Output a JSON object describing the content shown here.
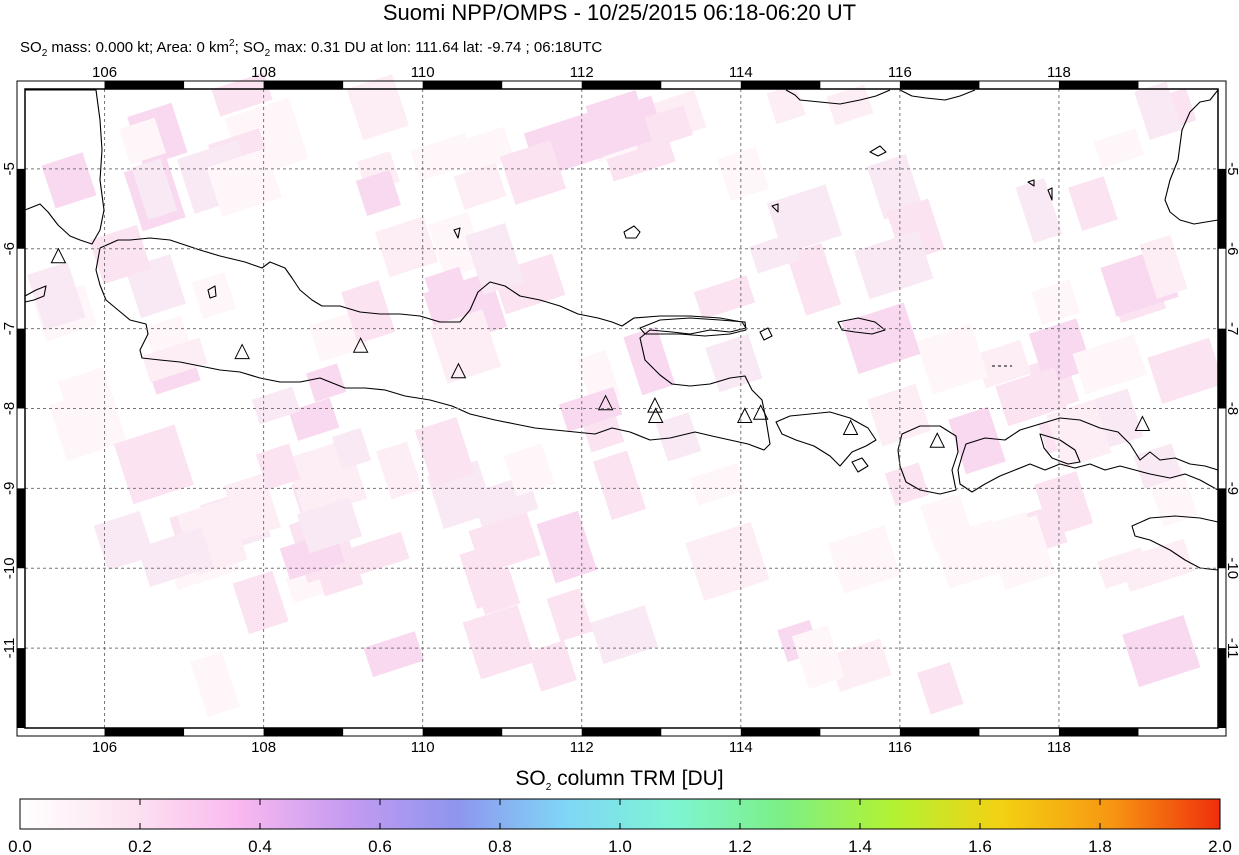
{
  "header": {
    "title": "Suomi NPP/OMPS - 10/25/2015 06:18-06:20 UT",
    "subtitle": {
      "mass_label": "SO",
      "mass_sub": "2",
      "mass_text": " mass: 0.000 kt; Area: 0 km",
      "area_sup": "2",
      "sep": "; SO",
      "max_sub": "2",
      "max_text": " max: 0.31 DU at lon: 111.64 lat: -9.74 ; 06:18UTC"
    }
  },
  "map": {
    "lon_range": [
      105.0,
      120.0
    ],
    "lat_range": [
      -12.0,
      -4.0
    ],
    "lon_ticks": [
      106,
      108,
      110,
      112,
      114,
      116,
      118
    ],
    "lon_tick_labels": [
      "106",
      "108",
      "110",
      "112",
      "114",
      "116",
      "118"
    ],
    "lat_ticks": [
      -5,
      -6,
      -7,
      -8,
      -9,
      -10,
      -11
    ],
    "lat_tick_labels": [
      "-5",
      "-6",
      "-7",
      "-8",
      "-9",
      "-10",
      "-11"
    ],
    "grid": true,
    "volcanoes": [
      [
        105.42,
        -6.1
      ],
      [
        107.73,
        -7.3
      ],
      [
        109.22,
        -7.22
      ],
      [
        110.45,
        -7.54
      ],
      [
        112.3,
        -7.94
      ],
      [
        112.92,
        -7.97
      ],
      [
        112.93,
        -8.1
      ],
      [
        114.05,
        -8.1
      ],
      [
        114.25,
        -8.06
      ],
      [
        115.38,
        -8.25
      ],
      [
        116.47,
        -8.41
      ],
      [
        119.05,
        -8.2
      ]
    ]
  },
  "colorbar": {
    "title_prefix": "SO",
    "title_sub": "2",
    "title_suffix": " column TRM [DU]",
    "min": 0.0,
    "max": 2.0,
    "tick_labels": [
      "0.0",
      "0.2",
      "0.4",
      "0.6",
      "0.8",
      "1.0",
      "1.2",
      "1.4",
      "1.6",
      "1.8",
      "2.0"
    ],
    "colors": [
      "#ffffff",
      "#fde3f1",
      "#f9b9ef",
      "#c59bf1",
      "#8f95ee",
      "#7fd6f6",
      "#7ef5d3",
      "#7def84",
      "#b3f233",
      "#f3d112",
      "#f79712",
      "#ef2f0c"
    ]
  }
}
